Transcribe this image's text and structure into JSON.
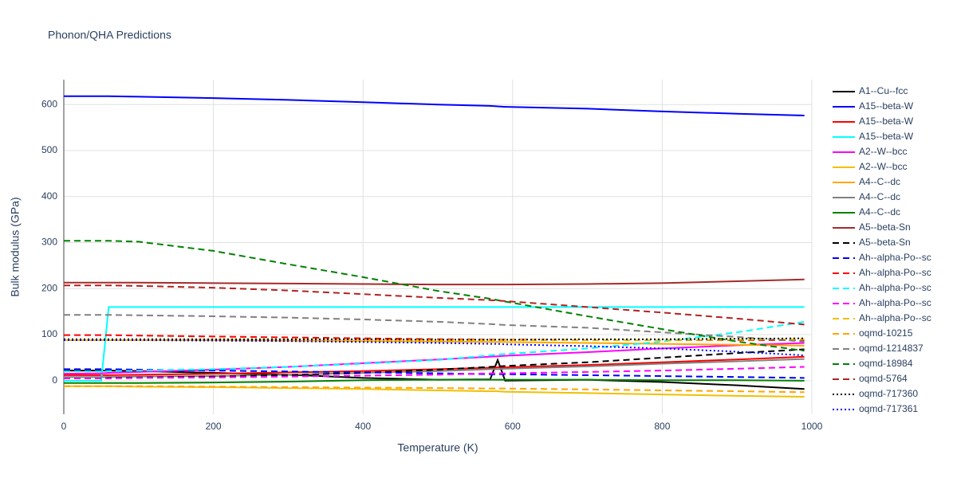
{
  "chart_data": {
    "type": "line",
    "title": "Phonon/QHA Predictions",
    "x_label": "Temperature (K)",
    "y_label": "Bulk modulus (GPa)",
    "x": [
      0,
      50,
      60,
      100,
      200,
      300,
      400,
      500,
      570,
      580,
      590,
      700,
      800,
      900,
      990
    ],
    "xlim": [
      0,
      1000
    ],
    "xticks": [
      0,
      200,
      400,
      600,
      800,
      1000
    ],
    "ylim": [
      -73,
      654
    ],
    "yticks": [
      0,
      100,
      200,
      300,
      400,
      500,
      600
    ],
    "grid": true,
    "series": [
      {
        "name": "A1--Cu--fcc",
        "color": "#000000",
        "dash": "solid",
        "values": [
          22,
          22,
          22,
          21,
          17,
          13,
          6,
          2,
          3,
          45,
          0,
          2,
          -3,
          -10,
          -18
        ]
      },
      {
        "name": "A15--beta-W",
        "color": "#0000ff",
        "dash": "solid",
        "values": [
          618,
          618,
          618,
          617,
          614,
          610,
          605,
          600,
          597,
          596,
          595,
          591,
          585,
          580,
          576
        ]
      },
      {
        "name": "A15--beta-W",
        "color": "#ff0000",
        "dash": "solid",
        "values": [
          12,
          12,
          12,
          13,
          15,
          18,
          21,
          25,
          28,
          29,
          29,
          34,
          40,
          46,
          52
        ]
      },
      {
        "name": "A15--beta-W",
        "color": "#00ffff",
        "dash": "solid",
        "values": [
          0,
          0,
          160,
          160,
          160,
          160,
          160,
          160,
          160,
          160,
          160,
          160,
          160,
          160,
          160
        ]
      },
      {
        "name": "A2--W--bcc",
        "color": "#ff00ff",
        "dash": "solid",
        "values": [
          15,
          16,
          17,
          19,
          24,
          30,
          38,
          46,
          52,
          53,
          54,
          62,
          70,
          77,
          82
        ]
      },
      {
        "name": "A2--W--bcc",
        "color": "#f0c000",
        "dash": "solid",
        "values": [
          -12,
          -12,
          -12,
          -13,
          -14,
          -16,
          -18,
          -21,
          -23,
          -23,
          -24,
          -27,
          -30,
          -33,
          -35
        ]
      },
      {
        "name": "A4--C--dc",
        "color": "#ffa500",
        "dash": "solid",
        "values": [
          88,
          88,
          88,
          88,
          88,
          87,
          86,
          85,
          84,
          84,
          84,
          82,
          80,
          78,
          76
        ]
      },
      {
        "name": "A4--C--dc",
        "color": "#808080",
        "dash": "solid",
        "values": [
          8,
          8,
          8,
          9,
          10,
          13,
          17,
          21,
          25,
          25,
          26,
          31,
          37,
          42,
          47
        ]
      },
      {
        "name": "A4--C--dc",
        "color": "#008000",
        "dash": "solid",
        "values": [
          -5,
          -5,
          -5,
          -5,
          -4,
          -2,
          1,
          2,
          2,
          2,
          2,
          2,
          1,
          1,
          0
        ]
      },
      {
        "name": "A5--beta-Sn",
        "color": "#a52a2a",
        "dash": "solid",
        "values": [
          213,
          213,
          213,
          213,
          212,
          211,
          210,
          209,
          209,
          209,
          209,
          210,
          212,
          216,
          220
        ]
      },
      {
        "name": "A5--beta-Sn",
        "color": "#000000",
        "dash": "dash",
        "values": [
          5,
          5,
          6,
          7,
          9,
          12,
          17,
          24,
          30,
          31,
          32,
          40,
          50,
          60,
          68
        ]
      },
      {
        "name": "Ah--alpha-Po--sc",
        "color": "#0000ff",
        "dash": "dash",
        "values": [
          25,
          25,
          25,
          24,
          22,
          20,
          18,
          16,
          14,
          14,
          14,
          12,
          10,
          8,
          6
        ]
      },
      {
        "name": "Ah--alpha-Po--sc",
        "color": "#ff0000",
        "dash": "dash",
        "values": [
          99,
          99,
          99,
          98,
          96,
          94,
          92,
          90,
          89,
          89,
          89,
          88,
          88,
          88,
          88
        ]
      },
      {
        "name": "Ah--alpha-Po--sc",
        "color": "#00ffff",
        "dash": "dash",
        "values": [
          20,
          20,
          21,
          22,
          25,
          30,
          37,
          45,
          55,
          57,
          58,
          70,
          85,
          105,
          128
        ]
      },
      {
        "name": "Ah--alpha-Po--sc",
        "color": "#ff00ff",
        "dash": "dash",
        "values": [
          5,
          5,
          5,
          6,
          7,
          9,
          11,
          13,
          16,
          16,
          16,
          19,
          22,
          26,
          30
        ]
      },
      {
        "name": "Ah--alpha-Po--sc",
        "color": "#f0c000",
        "dash": "dash",
        "values": [
          88,
          88,
          88,
          88,
          88,
          88,
          88,
          88,
          88,
          88,
          88,
          88,
          88,
          89,
          90
        ]
      },
      {
        "name": "oqmd-10215",
        "color": "#ffa500",
        "dash": "dash",
        "values": [
          -12,
          -12,
          -12,
          -12,
          -13,
          -14,
          -15,
          -16,
          -17,
          -17,
          -17,
          -19,
          -21,
          -23,
          -25
        ]
      },
      {
        "name": "oqmd-1214837",
        "color": "#808080",
        "dash": "dash",
        "values": [
          143,
          143,
          143,
          142,
          140,
          137,
          133,
          128,
          123,
          122,
          121,
          115,
          105,
          95,
          85
        ]
      },
      {
        "name": "oqmd-18984",
        "color": "#008000",
        "dash": "dash",
        "values": [
          304,
          304,
          304,
          302,
          282,
          253,
          225,
          195,
          178,
          175,
          172,
          140,
          112,
          85,
          65
        ]
      },
      {
        "name": "oqmd-5764",
        "color": "#b22222",
        "dash": "dash",
        "values": [
          207,
          207,
          207,
          206,
          202,
          196,
          188,
          180,
          175,
          174,
          173,
          160,
          148,
          135,
          122
        ]
      },
      {
        "name": "oqmd-717360",
        "color": "#000000",
        "dash": "dot",
        "values": [
          90,
          90,
          90,
          90,
          90,
          90,
          90,
          89,
          89,
          89,
          89,
          90,
          90,
          91,
          92
        ]
      },
      {
        "name": "oqmd-717361",
        "color": "#0000ff",
        "dash": "dot",
        "values": [
          88,
          88,
          88,
          88,
          87,
          86,
          84,
          82,
          80,
          80,
          79,
          75,
          70,
          63,
          55
        ]
      }
    ]
  }
}
